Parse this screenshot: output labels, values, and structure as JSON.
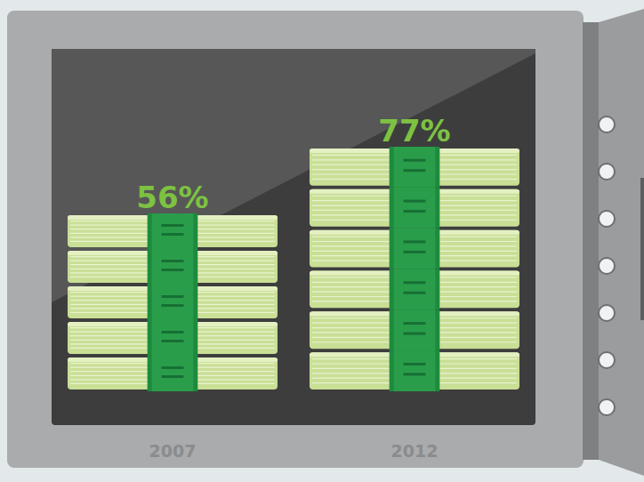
{
  "chart_data": {
    "type": "bar",
    "categories": [
      "2007",
      "2012"
    ],
    "values": [
      56,
      77
    ],
    "value_labels": [
      "56%",
      "77%"
    ],
    "color": "#c9df96",
    "data_labels": true,
    "tick_labels": "x",
    "grid": false
  }
}
